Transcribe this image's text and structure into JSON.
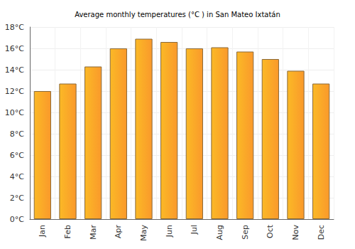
{
  "chart_data": {
    "type": "bar",
    "title": "Average monthly temperatures (°C ) in San Mateo Ixtatán",
    "categories": [
      "Jan",
      "Feb",
      "Mar",
      "Apr",
      "May",
      "Jun",
      "Jul",
      "Aug",
      "Sep",
      "Oct",
      "Nov",
      "Dec"
    ],
    "values": [
      12.0,
      12.7,
      14.3,
      16.0,
      16.9,
      16.6,
      16.0,
      16.1,
      15.7,
      15.0,
      13.9,
      12.7
    ],
    "color": "#f9a233",
    "ylim": [
      0,
      18
    ],
    "yticks": [
      {
        "value": 0,
        "label": "0°C"
      },
      {
        "value": 2,
        "label": "2°C"
      },
      {
        "value": 4,
        "label": "4°C"
      },
      {
        "value": 6,
        "label": "6°C"
      },
      {
        "value": 8,
        "label": "8°C"
      },
      {
        "value": 10,
        "label": "10°C"
      },
      {
        "value": 12,
        "label": "12°C"
      },
      {
        "value": 14,
        "label": "14°C"
      },
      {
        "value": 16,
        "label": "16°C"
      },
      {
        "value": 18,
        "label": "18°C"
      }
    ],
    "grid": true
  }
}
